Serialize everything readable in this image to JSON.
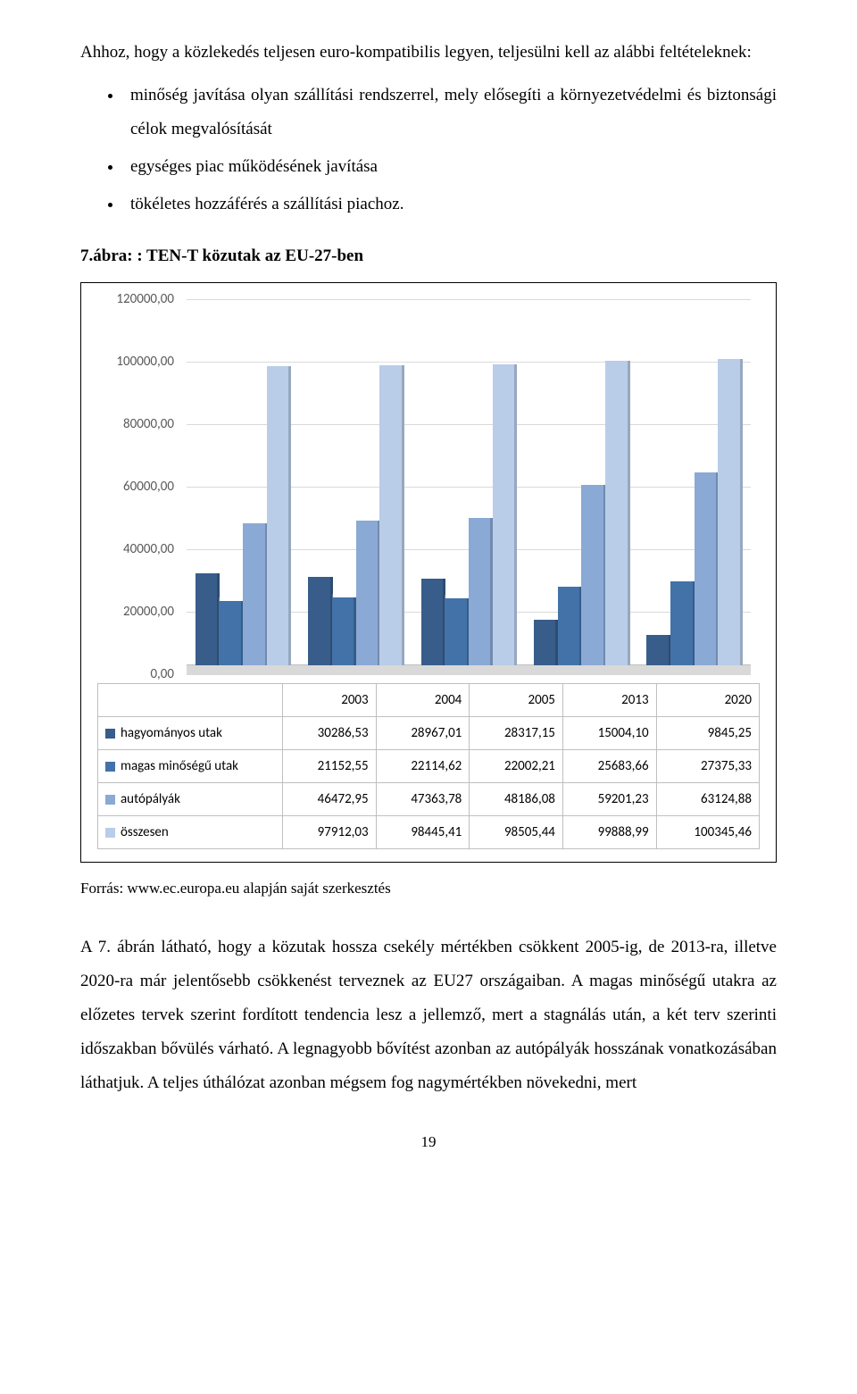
{
  "intro_paragraph": "Ahhoz, hogy a közlekedés teljesen euro-kompatibilis legyen, teljesülni kell az alábbi feltételeknek:",
  "bullets": [
    "minőség javítása olyan szállítási rendszerrel, mely elősegíti a környezetvédelmi és biztonsági célok megvalósítását",
    "egységes piac működésének javítása",
    "tökéletes hozzáférés a szállítási piachoz."
  ],
  "figure_caption": "7.ábra: : TEN-T közutak az EU-27-ben",
  "chart": {
    "ymax": 120000,
    "yticks": [
      "0,00",
      "20000,00",
      "40000,00",
      "60000,00",
      "80000,00",
      "100000,00",
      "120000,00"
    ],
    "categories": [
      "2003",
      "2004",
      "2005",
      "2013",
      "2020"
    ],
    "series": [
      {
        "name": "hagyományos utak",
        "color": "#385d8a",
        "values": [
          30286.53,
          28967.01,
          28317.15,
          15004.1,
          9845.25
        ],
        "labels": [
          "30286,53",
          "28967,01",
          "28317,15",
          "15004,10",
          "9845,25"
        ]
      },
      {
        "name": "magas minőségű utak",
        "color": "#4372a8",
        "values": [
          21152.55,
          22114.62,
          22002.21,
          25683.66,
          27375.33
        ],
        "labels": [
          "21152,55",
          "22114,62",
          "22002,21",
          "25683,66",
          "27375,33"
        ]
      },
      {
        "name": "autópályák",
        "color": "#8aa9d5",
        "values": [
          46472.95,
          47363.78,
          48186.08,
          59201.23,
          63124.88
        ],
        "labels": [
          "46472,95",
          "47363,78",
          "48186,08",
          "59201,23",
          "63124,88"
        ]
      },
      {
        "name": "összesen",
        "color": "#b9cde9",
        "values": [
          97912.03,
          98445.41,
          98505.44,
          99888.99,
          100345.46
        ],
        "labels": [
          "97912,03",
          "98445,41",
          "98505,44",
          "99888,99",
          "100345,46"
        ]
      }
    ],
    "table_header_blank": "",
    "grid_color": "#d9d9d9",
    "background": "#ffffff"
  },
  "source_line": "Forrás: www.ec.europa.eu alapján saját szerkesztés",
  "body_paragraph": "A 7. ábrán látható, hogy a közutak hossza csekély mértékben csökkent 2005-ig, de 2013-ra, illetve 2020-ra már jelentősebb csökkenést terveznek az EU27 országaiban. A magas minőségű utakra az előzetes tervek szerint fordított tendencia lesz a jellemző, mert a stagnálás után, a két terv szerinti időszakban bővülés várható. A legnagyobb bővítést azonban az autópályák hosszának vonatkozásában láthatjuk. A teljes úthálózat azonban mégsem fog nagymértékben növekedni, mert",
  "page_number": "19"
}
